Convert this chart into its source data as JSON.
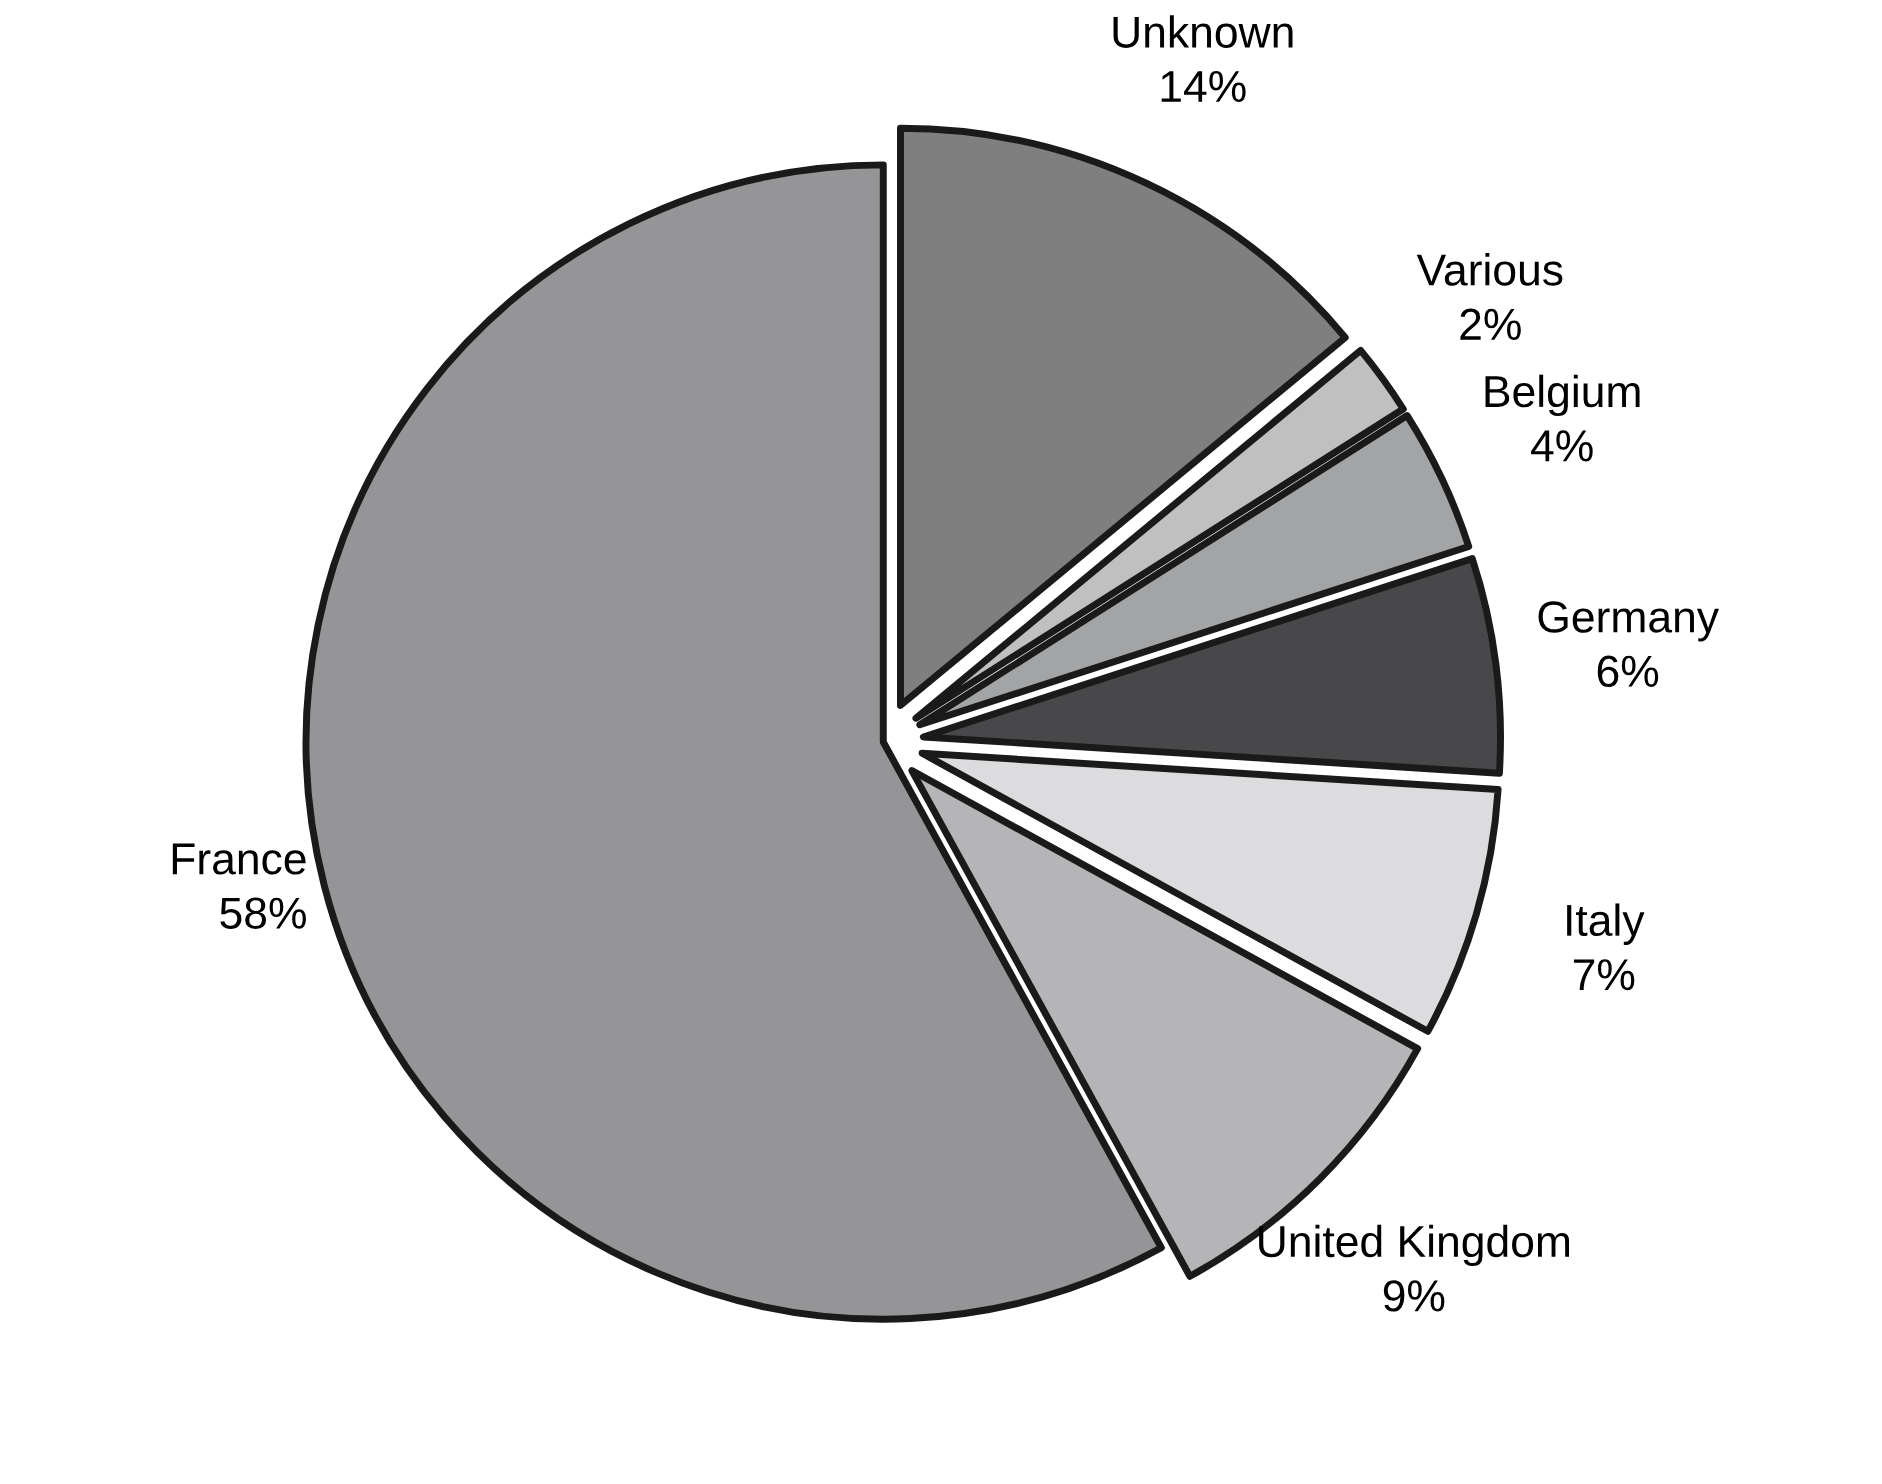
{
  "chart_data": {
    "type": "pie",
    "categories": [
      "Unknown",
      "Various",
      "Belgium",
      "Germany",
      "Italy",
      "United Kingdom",
      "France"
    ],
    "values": [
      14,
      2,
      4,
      6,
      7,
      9,
      58
    ],
    "colors": [
      "#7f7f7f",
      "#c0c0c0",
      "#a2a4a6",
      "#48484a",
      "#dcdcde",
      "#b5b5b7",
      "#959597"
    ],
    "value_labels": [
      "14%",
      "2%",
      "4%",
      "6%",
      "7%",
      "9%",
      "58%"
    ],
    "legend": false
  }
}
